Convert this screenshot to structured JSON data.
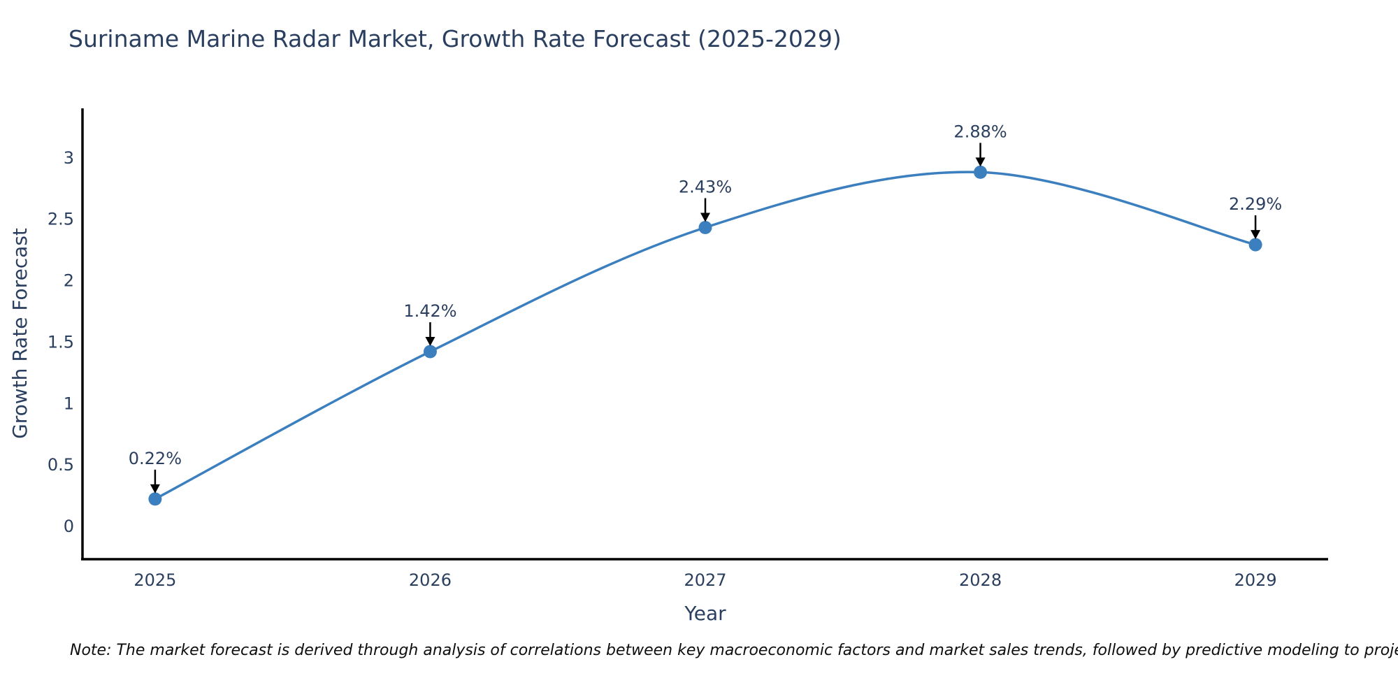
{
  "chart_data": {
    "type": "line",
    "title": "Suriname Marine Radar Market, Growth Rate Forecast (2025-2029)",
    "xlabel": "Year",
    "ylabel": "Growth Rate Forecast",
    "categories": [
      "2025",
      "2026",
      "2027",
      "2028",
      "2029"
    ],
    "values": [
      0.22,
      1.42,
      2.43,
      2.88,
      2.29
    ],
    "point_labels": [
      "0.22%",
      "1.42%",
      "2.43%",
      "2.88%",
      "2.29%"
    ],
    "yticks": [
      0,
      0.5,
      1,
      1.5,
      2,
      2.5,
      3
    ],
    "ylim": [
      -0.27,
      3.4
    ],
    "line_shape": "spline",
    "grid": false,
    "legend": "none",
    "line_color": "#3c7fbf",
    "marker_color": "#3c7fbf",
    "annotation_arrow_color": "#000000",
    "text_color": "#2a3f5f",
    "axis_line_color": "#000000"
  },
  "footnote": "Note: The market forecast is derived through analysis of correlations between key macroeconomic factors and market sales trends, followed by predictive modeling to project future sales"
}
